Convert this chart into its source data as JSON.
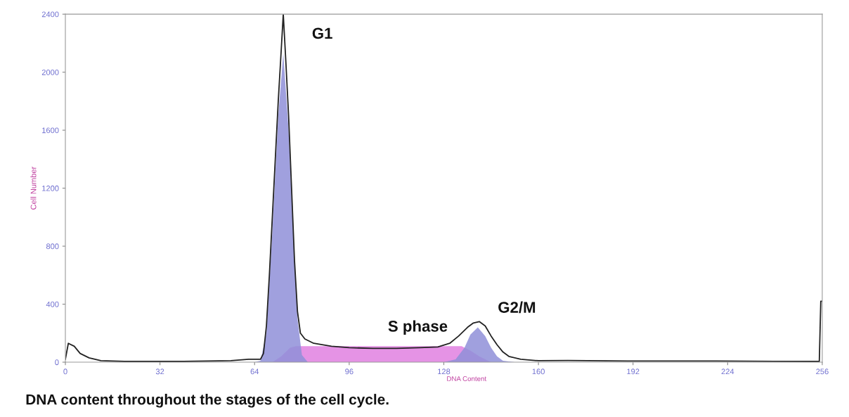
{
  "chart_data": {
    "type": "area",
    "xlabel": "DNA Content",
    "ylabel": "Cell Number",
    "xlim": [
      0,
      256
    ],
    "ylim": [
      0,
      2400
    ],
    "xticks": [
      0,
      32,
      64,
      96,
      128,
      160,
      192,
      224,
      256
    ],
    "yticks": [
      0,
      400,
      800,
      1200,
      1600,
      2000,
      2400
    ],
    "grid": false,
    "legend": false,
    "series": [
      {
        "name": "S phase",
        "color": "#e080e0",
        "x": [
          70,
          73,
          76,
          78,
          134,
          137,
          140,
          144
        ],
        "values": [
          0,
          40,
          100,
          110,
          110,
          80,
          40,
          0
        ]
      },
      {
        "name": "G1",
        "color": "#8f8fd8",
        "x": [
          64,
          66,
          68,
          70,
          72,
          73.7,
          75.5,
          77,
          78.5,
          80,
          82
        ],
        "values": [
          0,
          10,
          200,
          900,
          1700,
          2130,
          1600,
          900,
          300,
          50,
          0
        ]
      },
      {
        "name": "G2/M",
        "color": "#8f8fd8",
        "x": [
          128,
          132,
          135,
          137,
          139.5,
          142,
          144,
          146,
          148,
          152
        ],
        "values": [
          0,
          20,
          100,
          190,
          240,
          180,
          100,
          40,
          10,
          0
        ]
      },
      {
        "type": "line",
        "color": "#222222",
        "x": [
          0,
          1,
          3,
          5,
          8,
          12,
          20,
          40,
          56,
          62,
          66,
          67,
          68,
          69,
          70,
          71,
          72,
          73,
          73.7,
          74.5,
          75.5,
          76.5,
          77.5,
          78.5,
          79.5,
          81,
          84,
          90,
          96,
          104,
          112,
          120,
          126,
          130,
          133,
          136,
          138,
          140,
          142,
          144,
          146,
          148,
          150,
          154,
          160,
          170,
          190,
          220,
          240,
          254,
          255,
          255.5,
          256
        ],
        "values": [
          20,
          130,
          110,
          60,
          30,
          10,
          5,
          5,
          10,
          20,
          20,
          60,
          250,
          600,
          1000,
          1400,
          1800,
          2150,
          2400,
          2100,
          1700,
          1200,
          700,
          350,
          200,
          160,
          130,
          110,
          100,
          95,
          95,
          100,
          105,
          130,
          180,
          240,
          270,
          280,
          250,
          180,
          120,
          70,
          40,
          20,
          10,
          12,
          8,
          8,
          6,
          5,
          5,
          420,
          420
        ]
      }
    ],
    "annotations": [
      "DNA content throughout the stages of the cell cycle."
    ]
  }
}
